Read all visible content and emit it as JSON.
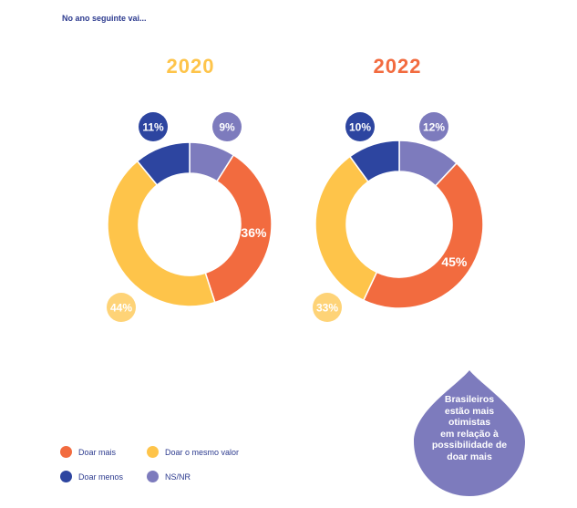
{
  "header": {
    "title": "No ano seguinte vai..."
  },
  "colors": {
    "doar_mais": "#f26b3f",
    "doar_mesmo": "#fec44a",
    "doar_menos": "#2d45a0",
    "ns_nr": "#7d7bbd",
    "year_2020": "#fec44a",
    "year_2022": "#f26b3f"
  },
  "legend": [
    {
      "label": "Doar mais",
      "color": "#f26b3f"
    },
    {
      "label": "Doar o mesmo valor",
      "color": "#fec44a"
    },
    {
      "label": "Doar menos",
      "color": "#2d45a0"
    },
    {
      "label": "NS/NR",
      "color": "#7d7bbd"
    }
  ],
  "callout": {
    "text": "Brasileiros\nestão mais\notimistas\nem relação à\npossibilidade de\ndoar mais"
  },
  "chart_data": [
    {
      "type": "pie",
      "title": "2020",
      "categories": [
        "Doar mais",
        "Doar o mesmo valor",
        "Doar menos",
        "NS/NR"
      ],
      "values": [
        36,
        44,
        11,
        9
      ],
      "labels": [
        "36%",
        "44%",
        "11%",
        "9%"
      ]
    },
    {
      "type": "pie",
      "title": "2022",
      "categories": [
        "Doar mais",
        "Doar o mesmo valor",
        "Doar menos",
        "NS/NR"
      ],
      "values": [
        45,
        33,
        10,
        12
      ],
      "labels": [
        "45%",
        "33%",
        "10%",
        "12%"
      ]
    }
  ]
}
